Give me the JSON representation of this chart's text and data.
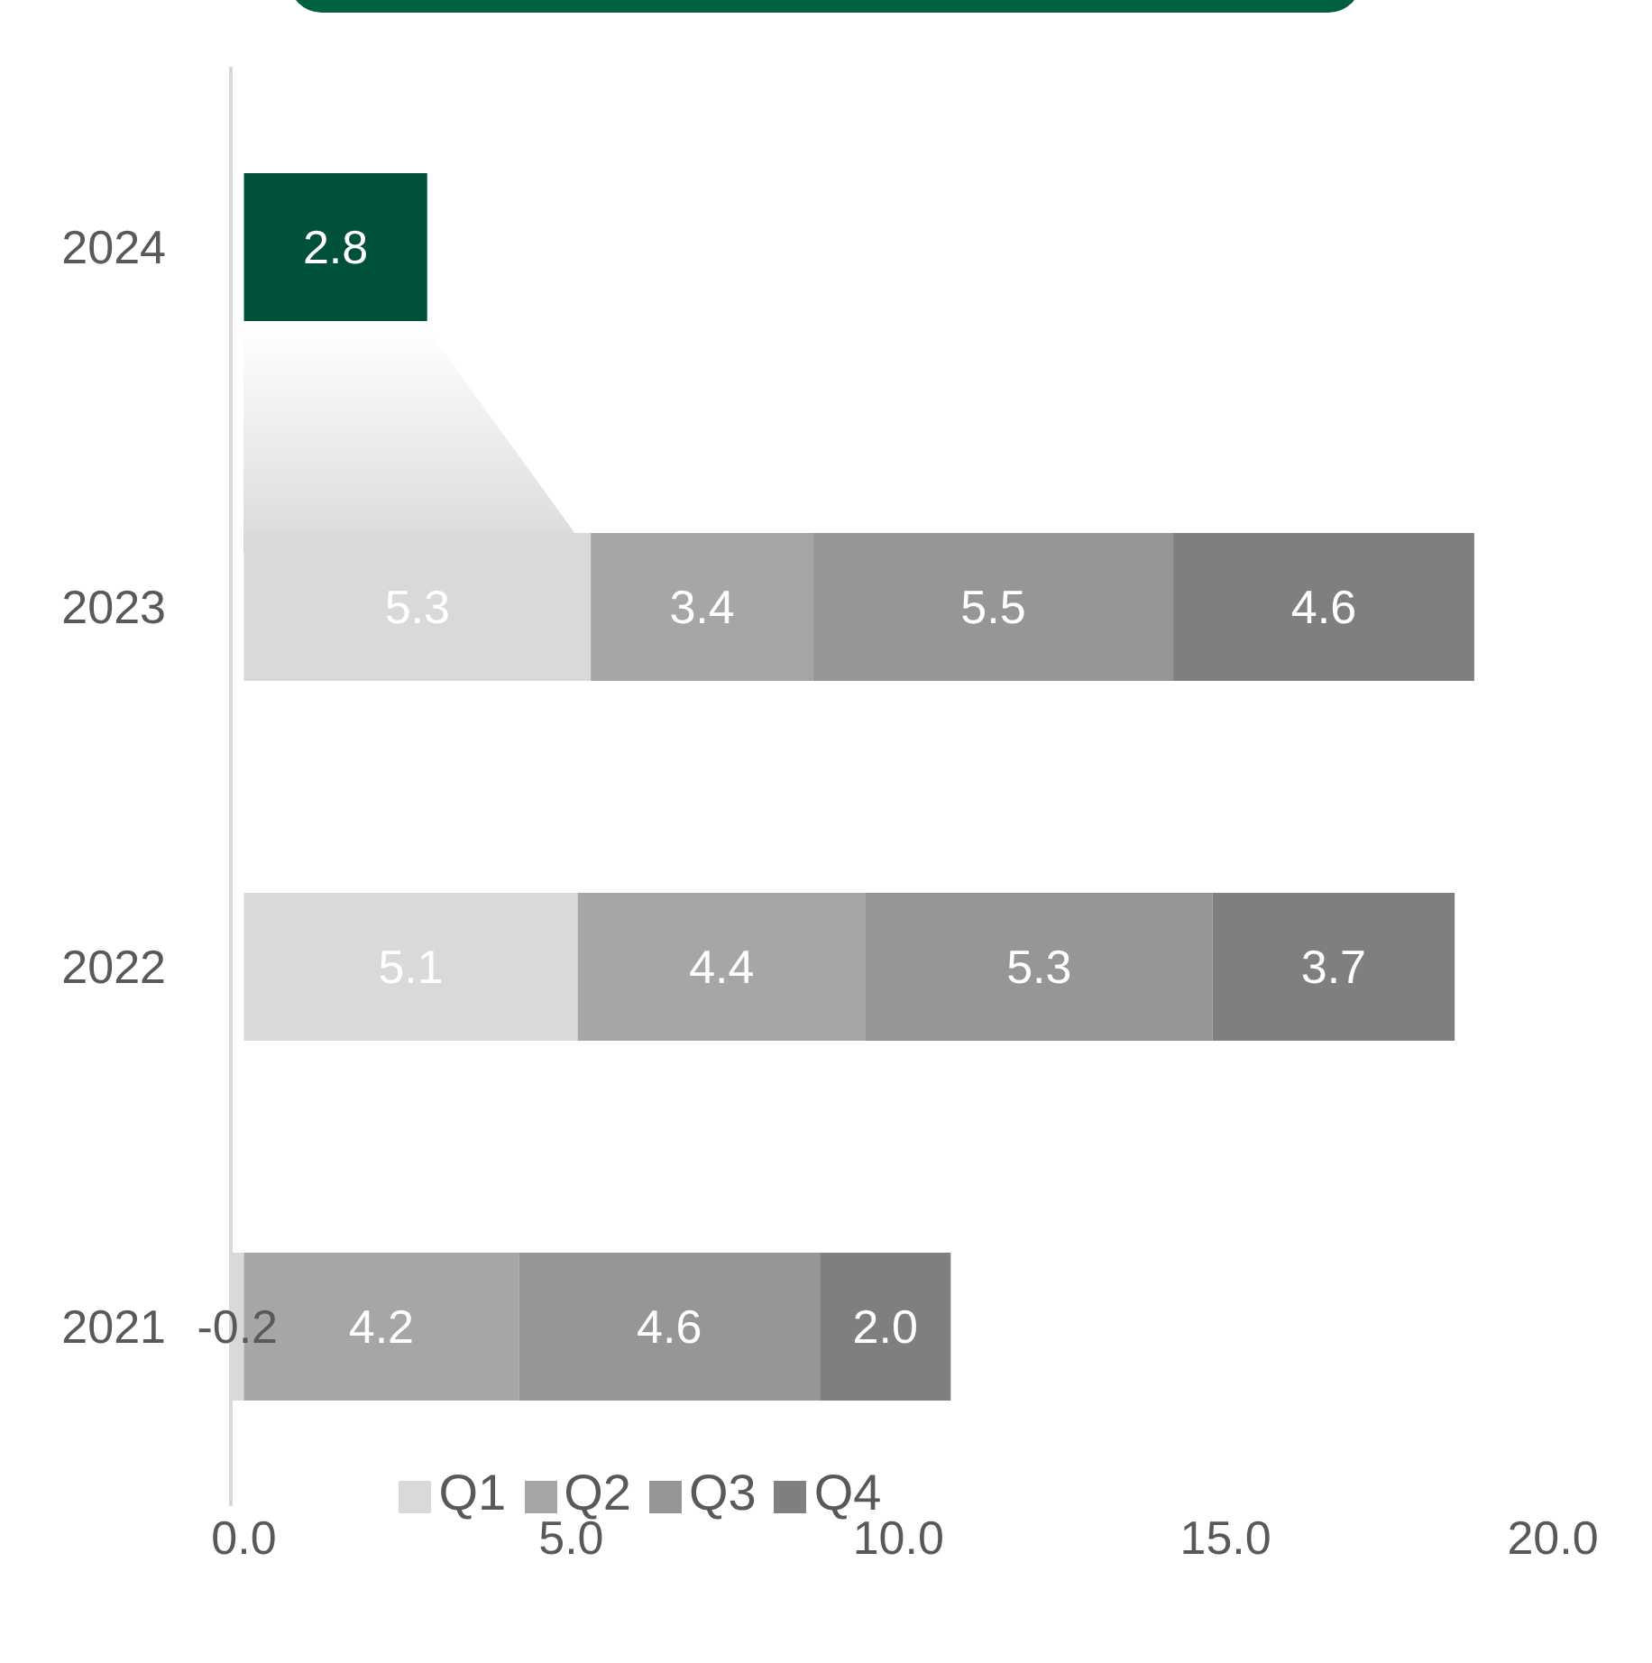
{
  "chart_data": {
    "type": "bar",
    "orientation": "horizontal",
    "stacked": true,
    "categories": [
      "2024",
      "2023",
      "2022",
      "2021"
    ],
    "series": [
      {
        "name": "Q1",
        "color": "#d9d9d9",
        "colors": [
          "#00513a",
          "#d9d9d9",
          "#d9d9d9",
          "#d9d9d9"
        ],
        "values": [
          2.8,
          5.3,
          5.1,
          -0.2
        ],
        "value_labels": [
          "2.8",
          "5.3",
          "5.1",
          "-0.2"
        ]
      },
      {
        "name": "Q2",
        "color": "#a6a6a6",
        "values": [
          null,
          3.4,
          4.4,
          4.2
        ],
        "value_labels": [
          null,
          "3.4",
          "4.4",
          "4.2"
        ]
      },
      {
        "name": "Q3",
        "color": "#969696",
        "values": [
          null,
          5.5,
          5.3,
          4.6
        ],
        "value_labels": [
          null,
          "5.5",
          "5.3",
          "4.6"
        ]
      },
      {
        "name": "Q4",
        "color": "#7f7f7f",
        "values": [
          null,
          4.6,
          3.7,
          2.0
        ],
        "value_labels": [
          null,
          "4.6",
          "3.7",
          "2.0"
        ]
      }
    ],
    "xlim": [
      -0.2,
      20
    ],
    "xticks": [
      {
        "value": 0,
        "label": "0.0"
      },
      {
        "value": 5,
        "label": "5.0"
      },
      {
        "value": 10,
        "label": "10.0"
      },
      {
        "value": 15,
        "label": "15.0"
      },
      {
        "value": 20,
        "label": "20.0"
      }
    ],
    "legend": "bottom"
  }
}
